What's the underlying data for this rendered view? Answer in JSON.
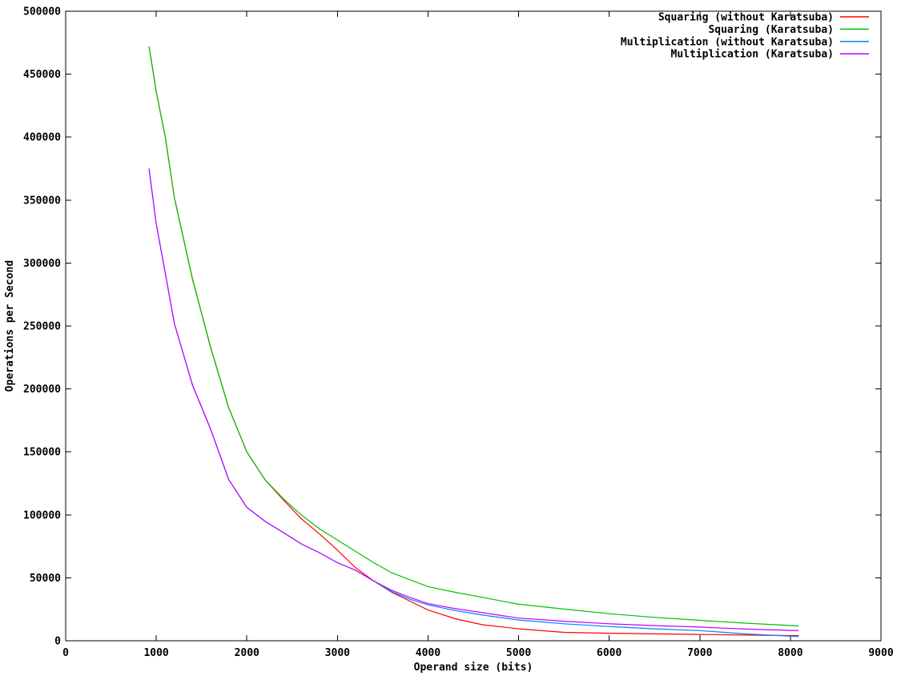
{
  "chart_data": {
    "type": "line",
    "title": "",
    "xlabel": "Operand size (bits)",
    "ylabel": "Operations per Second",
    "xlim": [
      0,
      9000
    ],
    "ylim": [
      0,
      500000
    ],
    "x_ticks": [
      0,
      1000,
      2000,
      3000,
      4000,
      5000,
      6000,
      7000,
      8000,
      9000
    ],
    "y_ticks": [
      0,
      50000,
      100000,
      150000,
      200000,
      250000,
      300000,
      350000,
      400000,
      450000,
      500000
    ],
    "grid": false,
    "legend_position": "top-right-inside",
    "background_color": "#ffffff",
    "axis_color": "#000000",
    "x": [
      920,
      1000,
      1100,
      1200,
      1400,
      1600,
      1800,
      2000,
      2200,
      2400,
      2600,
      2800,
      3000,
      3200,
      3400,
      3600,
      3800,
      4000,
      4300,
      4600,
      5000,
      5500,
      6000,
      6500,
      7000,
      7500,
      8090
    ],
    "series": [
      {
        "name": "Squaring (without Karatsuba)",
        "color": "#ff0000",
        "values": [
          472000,
          436000,
          400000,
          352000,
          287000,
          233000,
          185000,
          150000,
          128000,
          112000,
          97000,
          85000,
          72000,
          58000,
          47500,
          38500,
          31500,
          24400,
          17500,
          12700,
          9500,
          6700,
          6000,
          5500,
          5000,
          4500,
          4100
        ]
      },
      {
        "name": "Squaring (Karatsuba)",
        "color": "#00c000",
        "values": [
          472000,
          436000,
          400000,
          352000,
          287000,
          233000,
          185000,
          150000,
          128000,
          113000,
          100000,
          89000,
          80000,
          71000,
          62000,
          54000,
          48500,
          43000,
          38500,
          34500,
          29000,
          25200,
          21500,
          18600,
          16200,
          14000,
          11800
        ]
      },
      {
        "name": "Multiplication (without Karatsuba)",
        "color": "#0080ff",
        "values": [
          375000,
          331000,
          292000,
          252000,
          203000,
          168000,
          128000,
          106000,
          95000,
          86000,
          77000,
          70000,
          62000,
          56000,
          47500,
          39000,
          33000,
          28500,
          24000,
          20400,
          16500,
          13500,
          11300,
          9500,
          8100,
          5500,
          3300
        ]
      },
      {
        "name": "Multiplication (Karatsuba)",
        "color": "#c000ff",
        "values": [
          375000,
          331000,
          292000,
          252000,
          203000,
          168000,
          128000,
          106000,
          95000,
          86000,
          77000,
          70000,
          62000,
          56000,
          47500,
          40000,
          34500,
          29500,
          25500,
          22300,
          18000,
          15500,
          13500,
          12000,
          10900,
          9300,
          8000
        ]
      }
    ]
  }
}
